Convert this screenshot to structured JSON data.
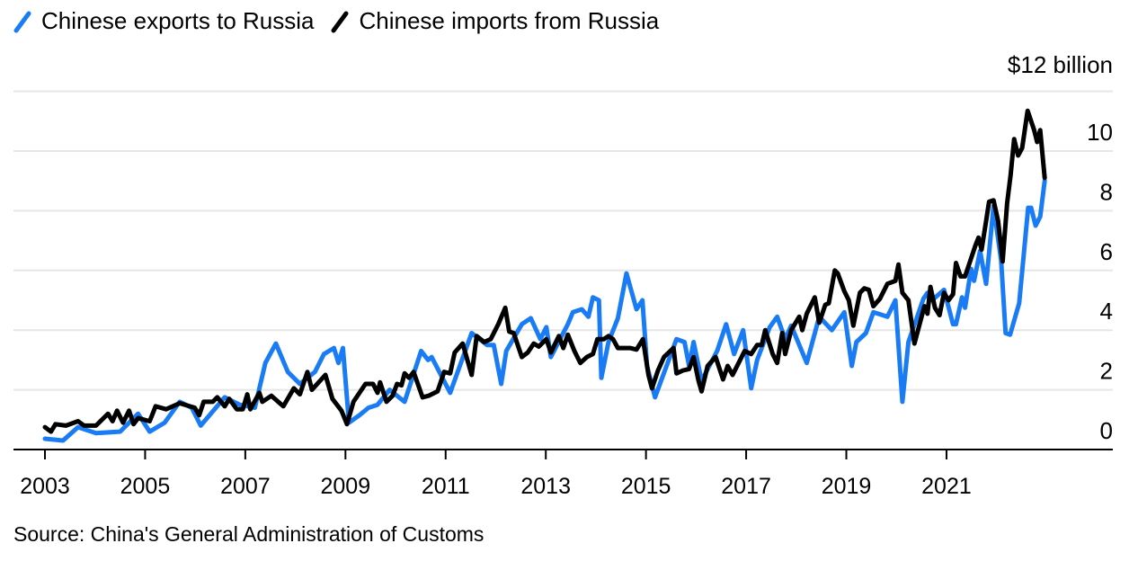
{
  "chart_data": {
    "type": "line",
    "title": "",
    "ylabel": "$12 billion",
    "ylim": [
      0,
      12
    ],
    "yticks": [
      "0",
      "2",
      "4",
      "6",
      "8",
      "10"
    ],
    "xlim": [
      2002.4,
      2025.0
    ],
    "xticks": [
      "2003",
      "2005",
      "2007",
      "2009",
      "2011",
      "2013",
      "2015",
      "2017",
      "2019",
      "2021"
    ],
    "grid": true,
    "legend": "top-left",
    "series": [
      {
        "name": "Chinese exports to Russia",
        "color": "#1a7cf4",
        "points": [
          [
            2003.0,
            0.36
          ],
          [
            2003.36,
            0.3
          ],
          [
            2003.66,
            0.75
          ],
          [
            2004.02,
            0.55
          ],
          [
            2004.5,
            0.6
          ],
          [
            2004.86,
            1.2
          ],
          [
            2005.09,
            0.6
          ],
          [
            2005.39,
            0.9
          ],
          [
            2005.69,
            1.6
          ],
          [
            2005.93,
            1.4
          ],
          [
            2006.11,
            0.8
          ],
          [
            2006.59,
            1.75
          ],
          [
            2006.89,
            1.5
          ],
          [
            2007.19,
            1.4
          ],
          [
            2007.4,
            2.9
          ],
          [
            2007.61,
            3.55
          ],
          [
            2007.85,
            2.6
          ],
          [
            2008.09,
            2.2
          ],
          [
            2008.39,
            2.6
          ],
          [
            2008.57,
            3.2
          ],
          [
            2008.77,
            3.4
          ],
          [
            2008.86,
            2.9
          ],
          [
            2008.95,
            3.4
          ],
          [
            2009.07,
            0.9
          ],
          [
            2009.28,
            1.15
          ],
          [
            2009.46,
            1.4
          ],
          [
            2009.64,
            1.5
          ],
          [
            2009.88,
            2.0
          ],
          [
            2010.18,
            1.6
          ],
          [
            2010.51,
            3.3
          ],
          [
            2010.65,
            3.0
          ],
          [
            2010.72,
            3.1
          ],
          [
            2011.09,
            1.9
          ],
          [
            2011.52,
            3.9
          ],
          [
            2011.83,
            3.5
          ],
          [
            2011.96,
            3.5
          ],
          [
            2012.11,
            2.2
          ],
          [
            2012.21,
            3.3
          ],
          [
            2012.52,
            4.2
          ],
          [
            2012.7,
            4.4
          ],
          [
            2012.89,
            3.7
          ],
          [
            2013.01,
            4.1
          ],
          [
            2013.1,
            3.1
          ],
          [
            2013.44,
            4.2
          ],
          [
            2013.54,
            4.6
          ],
          [
            2013.72,
            4.7
          ],
          [
            2013.85,
            4.45
          ],
          [
            2013.94,
            5.1
          ],
          [
            2014.06,
            5.0
          ],
          [
            2014.11,
            2.4
          ],
          [
            2014.25,
            3.6
          ],
          [
            2014.44,
            4.4
          ],
          [
            2014.61,
            5.9
          ],
          [
            2014.81,
            4.7
          ],
          [
            2014.93,
            5.0
          ],
          [
            2015.02,
            2.8
          ],
          [
            2015.18,
            1.75
          ],
          [
            2015.3,
            2.3
          ],
          [
            2015.61,
            3.7
          ],
          [
            2015.77,
            3.6
          ],
          [
            2015.86,
            2.8
          ],
          [
            2015.95,
            3.6
          ],
          [
            2016.11,
            2.3
          ],
          [
            2016.42,
            3.3
          ],
          [
            2016.6,
            4.2
          ],
          [
            2016.76,
            3.2
          ],
          [
            2016.94,
            4.0
          ],
          [
            2017.1,
            2.05
          ],
          [
            2017.22,
            3.0
          ],
          [
            2017.47,
            4.1
          ],
          [
            2017.62,
            4.45
          ],
          [
            2017.78,
            3.7
          ],
          [
            2017.9,
            4.15
          ],
          [
            2018.21,
            2.9
          ],
          [
            2018.46,
            4.45
          ],
          [
            2018.71,
            4.0
          ],
          [
            2018.96,
            4.6
          ],
          [
            2019.11,
            2.8
          ],
          [
            2019.2,
            3.6
          ],
          [
            2019.39,
            3.9
          ],
          [
            2019.54,
            4.6
          ],
          [
            2019.82,
            4.45
          ],
          [
            2019.98,
            5.0
          ],
          [
            2020.12,
            1.6
          ],
          [
            2020.24,
            3.6
          ],
          [
            2020.54,
            5.05
          ],
          [
            2020.62,
            5.25
          ],
          [
            2020.71,
            5.0
          ],
          [
            2020.95,
            5.35
          ],
          [
            2021.13,
            4.2
          ],
          [
            2021.19,
            4.2
          ],
          [
            2021.31,
            5.1
          ],
          [
            2021.37,
            4.75
          ],
          [
            2021.49,
            6.05
          ],
          [
            2021.55,
            5.65
          ],
          [
            2021.67,
            6.65
          ],
          [
            2021.79,
            5.55
          ],
          [
            2021.94,
            8.15
          ],
          [
            2022.09,
            6.35
          ],
          [
            2022.18,
            3.9
          ],
          [
            2022.27,
            3.85
          ],
          [
            2022.45,
            4.9
          ],
          [
            2022.63,
            8.1
          ],
          [
            2022.69,
            8.1
          ],
          [
            2022.78,
            7.5
          ],
          [
            2022.87,
            7.8
          ],
          [
            2022.96,
            9.0
          ]
        ]
      },
      {
        "name": "Chinese imports from Russia",
        "color": "#000000",
        "points": [
          [
            2003.0,
            0.75
          ],
          [
            2003.12,
            0.6
          ],
          [
            2003.21,
            0.85
          ],
          [
            2003.42,
            0.8
          ],
          [
            2003.66,
            0.95
          ],
          [
            2003.78,
            0.8
          ],
          [
            2004.02,
            0.8
          ],
          [
            2004.26,
            1.2
          ],
          [
            2004.35,
            0.95
          ],
          [
            2004.44,
            1.3
          ],
          [
            2004.56,
            0.9
          ],
          [
            2004.68,
            1.3
          ],
          [
            2004.77,
            0.85
          ],
          [
            2004.86,
            1.05
          ],
          [
            2005.09,
            0.95
          ],
          [
            2005.21,
            1.45
          ],
          [
            2005.42,
            1.35
          ],
          [
            2005.69,
            1.55
          ],
          [
            2005.99,
            1.4
          ],
          [
            2006.08,
            1.15
          ],
          [
            2006.17,
            1.6
          ],
          [
            2006.35,
            1.6
          ],
          [
            2006.44,
            1.75
          ],
          [
            2006.59,
            1.45
          ],
          [
            2006.68,
            1.7
          ],
          [
            2006.83,
            1.35
          ],
          [
            2006.95,
            1.35
          ],
          [
            2007.04,
            1.85
          ],
          [
            2007.1,
            1.35
          ],
          [
            2007.28,
            1.9
          ],
          [
            2007.34,
            1.6
          ],
          [
            2007.52,
            1.8
          ],
          [
            2007.76,
            1.45
          ],
          [
            2007.97,
            2.05
          ],
          [
            2008.09,
            1.85
          ],
          [
            2008.24,
            2.6
          ],
          [
            2008.33,
            2.0
          ],
          [
            2008.6,
            2.5
          ],
          [
            2008.74,
            1.7
          ],
          [
            2008.92,
            1.3
          ],
          [
            2009.03,
            0.85
          ],
          [
            2009.16,
            1.6
          ],
          [
            2009.4,
            2.2
          ],
          [
            2009.55,
            2.2
          ],
          [
            2009.64,
            1.9
          ],
          [
            2009.69,
            2.25
          ],
          [
            2009.82,
            1.6
          ],
          [
            2009.94,
            1.8
          ],
          [
            2010.03,
            2.2
          ],
          [
            2010.12,
            2.15
          ],
          [
            2010.18,
            2.55
          ],
          [
            2010.27,
            2.4
          ],
          [
            2010.36,
            2.6
          ],
          [
            2010.54,
            1.75
          ],
          [
            2010.66,
            1.8
          ],
          [
            2010.84,
            1.95
          ],
          [
            2010.97,
            2.6
          ],
          [
            2011.09,
            2.55
          ],
          [
            2011.18,
            3.25
          ],
          [
            2011.34,
            3.55
          ],
          [
            2011.52,
            2.5
          ],
          [
            2011.62,
            3.8
          ],
          [
            2011.77,
            3.6
          ],
          [
            2011.9,
            3.7
          ],
          [
            2012.05,
            4.2
          ],
          [
            2012.19,
            4.75
          ],
          [
            2012.27,
            3.95
          ],
          [
            2012.36,
            3.9
          ],
          [
            2012.52,
            3.1
          ],
          [
            2012.64,
            3.25
          ],
          [
            2012.76,
            3.55
          ],
          [
            2012.86,
            3.45
          ],
          [
            2013.01,
            3.7
          ],
          [
            2013.1,
            3.25
          ],
          [
            2013.26,
            3.8
          ],
          [
            2013.35,
            3.4
          ],
          [
            2013.44,
            3.85
          ],
          [
            2013.57,
            3.3
          ],
          [
            2013.69,
            2.9
          ],
          [
            2013.82,
            3.1
          ],
          [
            2013.94,
            3.2
          ],
          [
            2014.03,
            3.7
          ],
          [
            2014.16,
            3.7
          ],
          [
            2014.25,
            3.8
          ],
          [
            2014.34,
            3.7
          ],
          [
            2014.44,
            3.4
          ],
          [
            2014.68,
            3.4
          ],
          [
            2014.81,
            3.35
          ],
          [
            2014.94,
            3.7
          ],
          [
            2015.05,
            2.5
          ],
          [
            2015.12,
            2.05
          ],
          [
            2015.24,
            2.65
          ],
          [
            2015.36,
            3.1
          ],
          [
            2015.55,
            3.4
          ],
          [
            2015.61,
            2.55
          ],
          [
            2015.74,
            2.65
          ],
          [
            2015.86,
            2.7
          ],
          [
            2015.95,
            3.1
          ],
          [
            2016.05,
            2.3
          ],
          [
            2016.11,
            1.95
          ],
          [
            2016.23,
            2.8
          ],
          [
            2016.39,
            3.1
          ],
          [
            2016.54,
            2.35
          ],
          [
            2016.63,
            2.8
          ],
          [
            2016.73,
            2.5
          ],
          [
            2016.85,
            2.9
          ],
          [
            2016.97,
            3.3
          ],
          [
            2017.1,
            3.2
          ],
          [
            2017.22,
            3.5
          ],
          [
            2017.31,
            3.5
          ],
          [
            2017.38,
            4.0
          ],
          [
            2017.53,
            3.2
          ],
          [
            2017.62,
            2.9
          ],
          [
            2017.72,
            3.9
          ],
          [
            2017.78,
            3.2
          ],
          [
            2017.9,
            4.0
          ],
          [
            2018.06,
            4.45
          ],
          [
            2018.12,
            4.0
          ],
          [
            2018.21,
            4.55
          ],
          [
            2018.37,
            5.1
          ],
          [
            2018.46,
            4.25
          ],
          [
            2018.58,
            4.85
          ],
          [
            2018.65,
            4.9
          ],
          [
            2018.77,
            6.0
          ],
          [
            2018.83,
            5.9
          ],
          [
            2018.96,
            5.3
          ],
          [
            2019.05,
            5.0
          ],
          [
            2019.14,
            4.15
          ],
          [
            2019.27,
            5.25
          ],
          [
            2019.36,
            5.4
          ],
          [
            2019.45,
            5.35
          ],
          [
            2019.54,
            4.8
          ],
          [
            2019.67,
            5.05
          ],
          [
            2019.82,
            5.55
          ],
          [
            2019.98,
            5.65
          ],
          [
            2020.04,
            6.2
          ],
          [
            2020.12,
            5.25
          ],
          [
            2020.24,
            5.0
          ],
          [
            2020.36,
            3.55
          ],
          [
            2020.51,
            4.5
          ],
          [
            2020.56,
            4.8
          ],
          [
            2020.62,
            4.55
          ],
          [
            2020.68,
            5.45
          ],
          [
            2020.77,
            4.75
          ],
          [
            2020.86,
            4.5
          ],
          [
            2020.95,
            5.25
          ],
          [
            2021.04,
            5.0
          ],
          [
            2021.13,
            5.2
          ],
          [
            2021.19,
            6.25
          ],
          [
            2021.28,
            5.8
          ],
          [
            2021.37,
            5.8
          ],
          [
            2021.46,
            6.25
          ],
          [
            2021.58,
            6.85
          ],
          [
            2021.64,
            7.1
          ],
          [
            2021.7,
            6.7
          ],
          [
            2021.79,
            7.65
          ],
          [
            2021.85,
            8.3
          ],
          [
            2021.94,
            8.35
          ],
          [
            2022.03,
            7.65
          ],
          [
            2022.12,
            6.3
          ],
          [
            2022.21,
            8.25
          ],
          [
            2022.28,
            9.2
          ],
          [
            2022.35,
            10.4
          ],
          [
            2022.43,
            9.85
          ],
          [
            2022.51,
            10.1
          ],
          [
            2022.62,
            11.35
          ],
          [
            2022.75,
            10.7
          ],
          [
            2022.81,
            10.3
          ],
          [
            2022.87,
            10.7
          ],
          [
            2022.96,
            9.1
          ]
        ]
      }
    ]
  },
  "source": "Source: China's General Administration of Customs"
}
